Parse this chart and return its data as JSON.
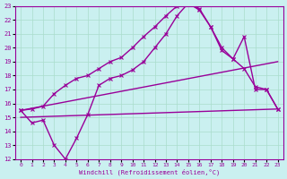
{
  "bg_color": "#caf0f0",
  "grid_color": "#aaddcc",
  "line_color": "#990099",
  "xlim": [
    -0.5,
    23.5
  ],
  "ylim": [
    12,
    23
  ],
  "xticks": [
    0,
    1,
    2,
    3,
    4,
    5,
    6,
    7,
    8,
    9,
    10,
    11,
    12,
    13,
    14,
    15,
    16,
    17,
    18,
    19,
    20,
    21,
    22,
    23
  ],
  "yticks": [
    12,
    13,
    14,
    15,
    16,
    17,
    18,
    19,
    20,
    21,
    22,
    23
  ],
  "xlabel": "Windchill (Refroidissement éolien,°C)",
  "series": [
    {
      "x": [
        0,
        1,
        2,
        3,
        4,
        5,
        6,
        7,
        8,
        9,
        10,
        11,
        12,
        13,
        14,
        15,
        16,
        17,
        18,
        19,
        20,
        21,
        22,
        23
      ],
      "y": [
        15.5,
        15.6,
        15.8,
        16.7,
        17.3,
        17.8,
        18.0,
        18.5,
        19.0,
        19.3,
        20.0,
        20.8,
        21.5,
        22.3,
        23.0,
        23.2,
        22.8,
        21.5,
        20.0,
        19.2,
        20.8,
        17.0,
        17.0,
        15.6
      ],
      "marker": "x",
      "lw": 1.0
    },
    {
      "x": [
        0,
        23
      ],
      "y": [
        15.5,
        19.0
      ],
      "marker": null,
      "lw": 1.0
    },
    {
      "x": [
        0,
        23
      ],
      "y": [
        15.0,
        15.6
      ],
      "marker": null,
      "lw": 1.0
    },
    {
      "x": [
        0,
        1,
        2,
        3,
        4,
        5,
        6,
        7,
        8,
        9,
        10,
        11,
        12,
        13,
        14,
        15,
        16,
        17,
        18,
        19,
        20,
        21,
        22,
        23
      ],
      "y": [
        15.5,
        14.6,
        14.8,
        13.0,
        12.0,
        13.5,
        15.2,
        17.3,
        17.8,
        18.0,
        18.4,
        19.0,
        20.0,
        21.0,
        22.3,
        23.2,
        22.7,
        21.5,
        19.8,
        19.2,
        18.5,
        17.2,
        17.0,
        15.6
      ],
      "marker": "x",
      "lw": 1.0
    }
  ]
}
